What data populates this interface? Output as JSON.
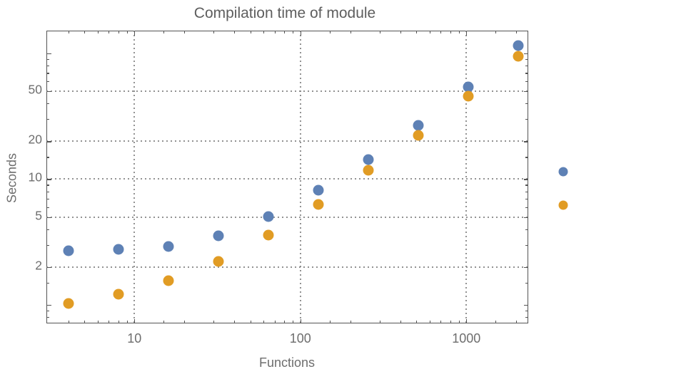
{
  "title": "Compilation time of module",
  "axes": {
    "x": {
      "label": "Functions",
      "scale": "log",
      "tick_labels": [
        "10",
        "100",
        "1000"
      ],
      "tick_values": [
        10,
        100,
        1000
      ],
      "minor_tick_values": [
        4,
        5,
        6,
        7,
        8,
        9,
        15,
        20,
        30,
        40,
        50,
        60,
        70,
        80,
        90,
        150,
        200,
        300,
        400,
        500,
        600,
        700,
        800,
        900,
        1500,
        2000
      ],
      "grid_values": [
        10,
        100,
        1000
      ]
    },
    "y": {
      "label": "Seconds",
      "scale": "log",
      "tick_labels": [
        "50",
        "20",
        "10",
        "5",
        "2"
      ],
      "tick_values": [
        50,
        20,
        10,
        5,
        2
      ],
      "unlabeled_major_tick_values": [
        1,
        100
      ],
      "minor_tick_values": [
        0.8,
        0.9,
        1.5,
        3,
        4,
        6,
        7,
        8,
        9,
        15,
        30,
        40,
        60,
        70,
        80,
        90
      ],
      "grid_values": [
        2,
        5,
        10,
        20,
        50
      ]
    }
  },
  "chart_data": {
    "type": "scatter",
    "title": "Compilation time of module",
    "xlabel": "Functions",
    "ylabel": "Seconds",
    "x": [
      4,
      8,
      16,
      32,
      64,
      128,
      256,
      512,
      1024,
      2048
    ],
    "series": [
      {
        "name": "series-1",
        "color": "#5E81B5",
        "values": [
          2.7,
          2.75,
          2.9,
          3.55,
          5.05,
          8.2,
          14.3,
          26.8,
          54.5,
          116
        ]
      },
      {
        "name": "series-2",
        "color": "#E19C24",
        "values": [
          1.03,
          1.21,
          1.55,
          2.2,
          3.6,
          6.3,
          11.7,
          22.3,
          45.5,
          94.5
        ]
      }
    ],
    "xlim": [
      2.95,
      2360
    ],
    "ylim": [
      0.71,
      152
    ],
    "xscale": "log",
    "yscale": "log",
    "grid": "dotted gray lines at labeled major ticks",
    "legend_position": "right-of-frame, markers only (no visible text labels)"
  },
  "legend": {
    "markers": [
      {
        "series": "series-1",
        "color": "#5E81B5"
      },
      {
        "series": "series-2",
        "color": "#E19C24"
      }
    ]
  },
  "colors": {
    "background": "#ffffff",
    "frame": "#545454",
    "grid": "#7f7f7f",
    "title_text": "#5e5e5e",
    "tick_text": "#6e6e6e"
  }
}
